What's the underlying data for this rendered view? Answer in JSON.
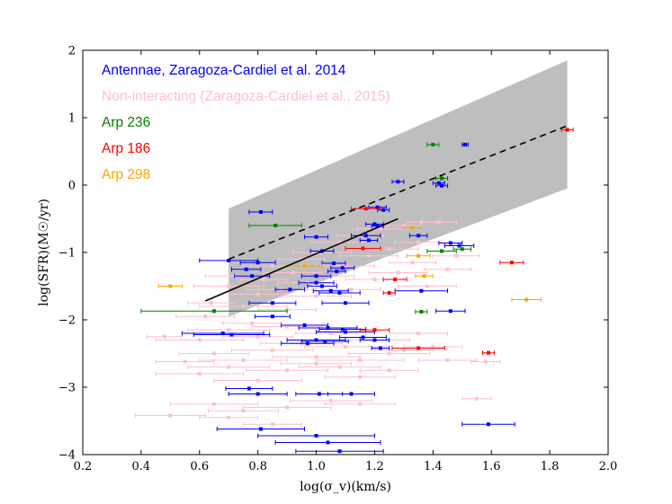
{
  "chart_data": {
    "type": "scatter",
    "title": "",
    "xlabel": "log(σ_v)(km/s)",
    "ylabel": "log(SFR)(M☉/yr)",
    "xlim": [
      0.2,
      2.0
    ],
    "ylim": [
      -4,
      2
    ],
    "xticks": [
      "0.2",
      "0.4",
      "0.6",
      "0.8",
      "1.0",
      "1.2",
      "1.4",
      "1.6",
      "1.8",
      "2.0"
    ],
    "yticks": [
      "−4",
      "−3",
      "−2",
      "−1",
      "0",
      "1",
      "2"
    ],
    "legend_position": "top-left",
    "legend": [
      {
        "label": "Antennae, Zaragoza-Cardiel et al. 2014",
        "color": "#0000ff"
      },
      {
        "label": "Non-interacting (Zaragoza-Cardiel et al., 2015)",
        "color": "#ffc0cb"
      },
      {
        "label": "Arp 236",
        "color": "#008000"
      },
      {
        "label": "Arp 186",
        "color": "#ff0000"
      },
      {
        "label": "Arp 298",
        "color": "#ffa500"
      }
    ],
    "band": {
      "x": [
        0.7,
        1.86
      ],
      "upper": [
        -0.35,
        1.85
      ],
      "lower": [
        -1.95,
        -0.05
      ],
      "color": "#bebebe"
    },
    "fit_solid": {
      "x": [
        0.62,
        1.28
      ],
      "y": [
        -1.72,
        -0.5
      ]
    },
    "fit_dashed": {
      "x": [
        0.7,
        1.86
      ],
      "y": [
        -1.1,
        0.88
      ]
    },
    "series": [
      {
        "name": "Non-interacting (Zaragoza-Cardiel et al., 2015)",
        "color": "#ffc0cb",
        "points": [
          {
            "x": 0.62,
            "y": -1.95,
            "xerr": 0.1
          },
          {
            "x": 0.64,
            "y": -1.75,
            "xerr": 0.08
          },
          {
            "x": 0.7,
            "y": -1.5,
            "xerr": 0.12
          },
          {
            "x": 0.72,
            "y": -1.35,
            "xerr": 0.1
          },
          {
            "x": 0.75,
            "y": -1.8,
            "xerr": 0.15
          },
          {
            "x": 0.78,
            "y": -2.05,
            "xerr": 0.1
          },
          {
            "x": 0.8,
            "y": -1.62,
            "xerr": 0.1
          },
          {
            "x": 0.82,
            "y": -1.4,
            "xerr": 0.08
          },
          {
            "x": 0.85,
            "y": -1.2,
            "xerr": 0.1
          },
          {
            "x": 0.88,
            "y": -1.55,
            "xerr": 0.12
          },
          {
            "x": 0.9,
            "y": -1.85,
            "xerr": 0.1
          },
          {
            "x": 0.92,
            "y": -1.3,
            "xerr": 0.1
          },
          {
            "x": 0.95,
            "y": -1.1,
            "xerr": 0.08
          },
          {
            "x": 0.97,
            "y": -1.45,
            "xerr": 0.1
          },
          {
            "x": 1.0,
            "y": -1.65,
            "xerr": 0.12
          },
          {
            "x": 1.02,
            "y": -1.0,
            "xerr": 0.1
          },
          {
            "x": 1.05,
            "y": -1.35,
            "xerr": 0.08
          },
          {
            "x": 1.08,
            "y": -0.85,
            "xerr": 0.1
          },
          {
            "x": 1.1,
            "y": -1.2,
            "xerr": 0.1
          },
          {
            "x": 1.12,
            "y": -1.55,
            "xerr": 0.1
          },
          {
            "x": 1.15,
            "y": -0.75,
            "xerr": 0.08
          },
          {
            "x": 1.18,
            "y": -1.05,
            "xerr": 0.1
          },
          {
            "x": 1.2,
            "y": -1.4,
            "xerr": 0.1
          },
          {
            "x": 1.22,
            "y": -0.65,
            "xerr": 0.08
          },
          {
            "x": 1.25,
            "y": -0.95,
            "xerr": 0.1
          },
          {
            "x": 1.28,
            "y": -1.3,
            "xerr": 0.1
          },
          {
            "x": 1.3,
            "y": -0.6,
            "xerr": 0.06
          },
          {
            "x": 1.33,
            "y": -1.15,
            "xerr": 0.08
          },
          {
            "x": 1.35,
            "y": -0.85,
            "xerr": 0.08
          },
          {
            "x": 1.38,
            "y": -1.5,
            "xerr": 0.1
          },
          {
            "x": 1.42,
            "y": -0.55,
            "xerr": 0.06
          },
          {
            "x": 1.45,
            "y": -1.25,
            "xerr": 0.08
          },
          {
            "x": 1.48,
            "y": -1.05,
            "xerr": 0.08
          },
          {
            "x": 1.36,
            "y": -0.55,
            "xerr": 0.05
          },
          {
            "x": 0.6,
            "y": -2.3,
            "xerr": 0.15
          },
          {
            "x": 0.65,
            "y": -2.5,
            "xerr": 0.12
          },
          {
            "x": 0.7,
            "y": -2.15,
            "xerr": 0.14
          },
          {
            "x": 0.75,
            "y": -2.6,
            "xerr": 0.15
          },
          {
            "x": 0.8,
            "y": -2.25,
            "xerr": 0.12
          },
          {
            "x": 0.85,
            "y": -2.45,
            "xerr": 0.14
          },
          {
            "x": 0.9,
            "y": -2.1,
            "xerr": 0.12
          },
          {
            "x": 0.95,
            "y": -2.35,
            "xerr": 0.14
          },
          {
            "x": 1.0,
            "y": -2.55,
            "xerr": 0.15
          },
          {
            "x": 1.05,
            "y": -2.2,
            "xerr": 0.12
          },
          {
            "x": 1.1,
            "y": -2.4,
            "xerr": 0.14
          },
          {
            "x": 1.15,
            "y": -2.6,
            "xerr": 0.15
          },
          {
            "x": 1.2,
            "y": -2.3,
            "xerr": 0.12
          },
          {
            "x": 1.25,
            "y": -2.5,
            "xerr": 0.14
          },
          {
            "x": 1.3,
            "y": -2.45,
            "xerr": 0.1
          },
          {
            "x": 1.35,
            "y": -2.2,
            "xerr": 0.1
          },
          {
            "x": 1.4,
            "y": -2.4,
            "xerr": 0.1
          },
          {
            "x": 1.45,
            "y": -2.6,
            "xerr": 0.1
          },
          {
            "x": 0.6,
            "y": -2.8,
            "xerr": 0.15
          },
          {
            "x": 0.7,
            "y": -2.7,
            "xerr": 0.14
          },
          {
            "x": 0.8,
            "y": -2.9,
            "xerr": 0.15
          },
          {
            "x": 0.9,
            "y": -2.75,
            "xerr": 0.14
          },
          {
            "x": 1.0,
            "y": -2.65,
            "xerr": 0.12
          },
          {
            "x": 1.08,
            "y": -2.7,
            "xerr": 0.14
          },
          {
            "x": 1.15,
            "y": -2.85,
            "xerr": 0.12
          },
          {
            "x": 1.25,
            "y": -2.75,
            "xerr": 0.1
          },
          {
            "x": 0.65,
            "y": -3.25,
            "xerr": 0.15
          },
          {
            "x": 0.75,
            "y": -3.35,
            "xerr": 0.12
          },
          {
            "x": 0.9,
            "y": -3.3,
            "xerr": 0.15
          },
          {
            "x": 1.05,
            "y": -3.2,
            "xerr": 0.14
          },
          {
            "x": 1.15,
            "y": -3.25,
            "xerr": 0.12
          },
          {
            "x": 1.55,
            "y": -3.17,
            "xerr": 0.05
          },
          {
            "x": 0.5,
            "y": -3.42,
            "xerr": 0.12
          },
          {
            "x": 0.7,
            "y": -3.45,
            "xerr": 0.1
          },
          {
            "x": 0.85,
            "y": -3.55,
            "xerr": 0.1
          },
          {
            "x": 0.55,
            "y": -2.62,
            "xerr": 0.1
          },
          {
            "x": 0.48,
            "y": -2.25,
            "xerr": 0.06
          },
          {
            "x": 1.58,
            "y": -2.62,
            "xerr": 0.05
          }
        ]
      },
      {
        "name": "Antennae, Zaragoza-Cardiel et al. 2014",
        "color": "#0000ff",
        "points": [
          {
            "x": 1.51,
            "y": 0.6,
            "xerr": 0.01
          },
          {
            "x": 1.28,
            "y": 0.05,
            "xerr": 0.02
          },
          {
            "x": 1.42,
            "y": 0.03,
            "xerr": 0.02
          },
          {
            "x": 1.43,
            "y": -0.01,
            "xerr": 0.02
          },
          {
            "x": 0.81,
            "y": -0.4,
            "xerr": 0.04
          },
          {
            "x": 1.21,
            "y": -0.33,
            "xerr": 0.03
          },
          {
            "x": 1.23,
            "y": -0.37,
            "xerr": 0.02
          },
          {
            "x": 1.2,
            "y": -0.58,
            "xerr": 0.03
          },
          {
            "x": 1.21,
            "y": -0.61,
            "xerr": 0.02
          },
          {
            "x": 1.0,
            "y": -0.77,
            "xerr": 0.04
          },
          {
            "x": 1.17,
            "y": -0.75,
            "xerr": 0.05
          },
          {
            "x": 1.18,
            "y": -0.82,
            "xerr": 0.03
          },
          {
            "x": 1.35,
            "y": -0.75,
            "xerr": 0.03
          },
          {
            "x": 1.46,
            "y": -0.86,
            "xerr": 0.04
          },
          {
            "x": 1.49,
            "y": -0.9,
            "xerr": 0.05
          },
          {
            "x": 1.02,
            "y": -0.98,
            "xerr": 0.04
          },
          {
            "x": 0.7,
            "y": -1.12,
            "xerr": 0.1
          },
          {
            "x": 0.8,
            "y": -1.15,
            "xerr": 0.06
          },
          {
            "x": 0.76,
            "y": -1.25,
            "xerr": 0.05
          },
          {
            "x": 0.78,
            "y": -1.35,
            "xerr": 0.06
          },
          {
            "x": 1.06,
            "y": -1.16,
            "xerr": 0.04
          },
          {
            "x": 1.09,
            "y": -1.23,
            "xerr": 0.04
          },
          {
            "x": 1.07,
            "y": -1.28,
            "xerr": 0.03
          },
          {
            "x": 1.0,
            "y": -1.35,
            "xerr": 0.05
          },
          {
            "x": 1.0,
            "y": -1.45,
            "xerr": 0.06
          },
          {
            "x": 1.02,
            "y": -1.5,
            "xerr": 0.05
          },
          {
            "x": 0.91,
            "y": -1.55,
            "xerr": 0.05
          },
          {
            "x": 1.05,
            "y": -1.57,
            "xerr": 0.06
          },
          {
            "x": 1.08,
            "y": -1.6,
            "xerr": 0.07
          },
          {
            "x": 1.1,
            "y": -1.75,
            "xerr": 0.08
          },
          {
            "x": 0.85,
            "y": -1.75,
            "xerr": 0.08
          },
          {
            "x": 0.85,
            "y": -1.95,
            "xerr": 0.06
          },
          {
            "x": 1.36,
            "y": -1.57,
            "xerr": 0.09
          },
          {
            "x": 1.46,
            "y": -1.87,
            "xerr": 0.05
          },
          {
            "x": 0.96,
            "y": -2.08,
            "xerr": 0.08
          },
          {
            "x": 1.04,
            "y": -2.12,
            "xerr": 0.1
          },
          {
            "x": 1.09,
            "y": -2.14,
            "xerr": 0.08
          },
          {
            "x": 1.1,
            "y": -2.18,
            "xerr": 0.1
          },
          {
            "x": 0.68,
            "y": -2.2,
            "xerr": 0.14
          },
          {
            "x": 0.71,
            "y": -2.22,
            "xerr": 0.13
          },
          {
            "x": 1.0,
            "y": -2.3,
            "xerr": 0.1
          },
          {
            "x": 1.03,
            "y": -2.32,
            "xerr": 0.08
          },
          {
            "x": 0.97,
            "y": -2.35,
            "xerr": 0.09
          },
          {
            "x": 1.16,
            "y": -2.26,
            "xerr": 0.08
          },
          {
            "x": 1.2,
            "y": -2.3,
            "xerr": 0.05
          },
          {
            "x": 1.22,
            "y": -2.42,
            "xerr": 0.03
          },
          {
            "x": 0.77,
            "y": -3.02,
            "xerr": 0.08
          },
          {
            "x": 0.8,
            "y": -3.1,
            "xerr": 0.1
          },
          {
            "x": 1.01,
            "y": -3.1,
            "xerr": 0.08
          },
          {
            "x": 1.12,
            "y": -3.1,
            "xerr": 0.08
          },
          {
            "x": 1.59,
            "y": -3.55,
            "xerr": 0.09
          },
          {
            "x": 0.81,
            "y": -3.62,
            "xerr": 0.15
          },
          {
            "x": 1.0,
            "y": -3.72,
            "xerr": 0.2
          },
          {
            "x": 1.04,
            "y": -3.82,
            "xerr": 0.18
          },
          {
            "x": 1.08,
            "y": -3.95,
            "xerr": 0.15
          }
        ]
      },
      {
        "name": "Arp 236",
        "color": "#008000",
        "points": [
          {
            "x": 1.4,
            "y": 0.6,
            "xerr": 0.02
          },
          {
            "x": 1.43,
            "y": 0.1,
            "xerr": 0.02
          },
          {
            "x": 0.86,
            "y": -0.6,
            "xerr": 0.09
          },
          {
            "x": 1.43,
            "y": -0.98,
            "xerr": 0.05
          },
          {
            "x": 1.5,
            "y": -0.95,
            "xerr": 0.03
          },
          {
            "x": 1.36,
            "y": -1.88,
            "xerr": 0.02
          },
          {
            "x": 0.65,
            "y": -1.87,
            "xerr": 0.25
          }
        ]
      },
      {
        "name": "Arp 186",
        "color": "#ff0000",
        "points": [
          {
            "x": 1.86,
            "y": 0.82,
            "xerr": 0.02
          },
          {
            "x": 1.17,
            "y": -0.35,
            "xerr": 0.05
          },
          {
            "x": 1.16,
            "y": -0.94,
            "xerr": 0.06
          },
          {
            "x": 1.67,
            "y": -1.15,
            "xerr": 0.04
          },
          {
            "x": 1.27,
            "y": -1.4,
            "xerr": 0.04
          },
          {
            "x": 1.2,
            "y": -2.15,
            "xerr": 0.05
          },
          {
            "x": 1.35,
            "y": -2.42,
            "xerr": 0.09
          },
          {
            "x": 1.59,
            "y": -2.49,
            "xerr": 0.02
          },
          {
            "x": 1.25,
            "y": -1.6,
            "xerr": 0.02
          }
        ]
      },
      {
        "name": "Arp 298",
        "color": "#ffa500",
        "points": [
          {
            "x": 1.33,
            "y": -0.63,
            "xerr": 0.03
          },
          {
            "x": 1.35,
            "y": -1.05,
            "xerr": 0.04
          },
          {
            "x": 1.37,
            "y": -1.35,
            "xerr": 0.03
          },
          {
            "x": 1.72,
            "y": -1.7,
            "xerr": 0.05
          },
          {
            "x": 0.5,
            "y": -1.5,
            "xerr": 0.04
          },
          {
            "x": 0.96,
            "y": -1.2,
            "xerr": 0.06
          }
        ]
      }
    ]
  }
}
